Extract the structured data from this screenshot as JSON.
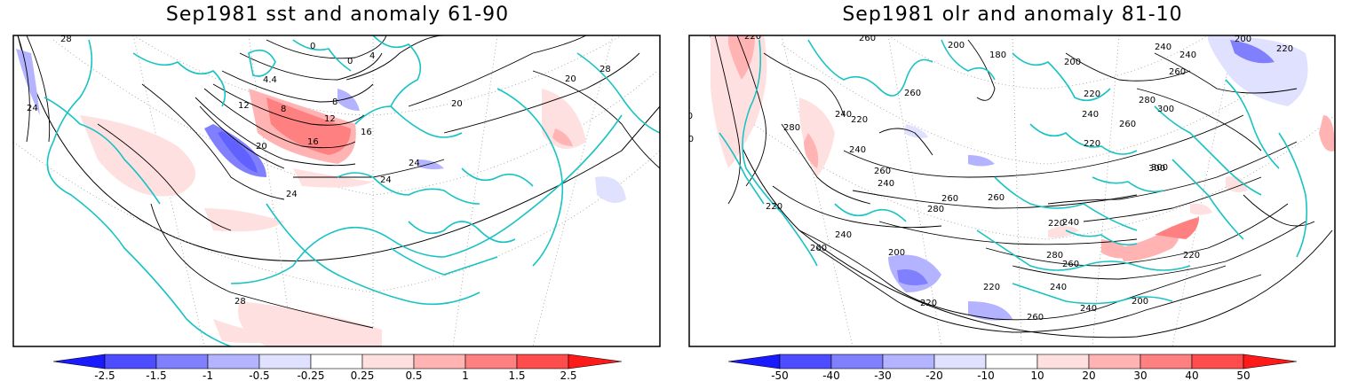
{
  "panels": [
    {
      "title": "Sep1981 sst and anomaly 61-90",
      "colorbar": {
        "ticks": [
          "-2.5",
          "-1.5",
          "-1",
          "-0.5",
          "-0.25",
          "0.25",
          "0.5",
          "1",
          "1.5",
          "2.5"
        ],
        "colors": [
          "#1a1aff",
          "#4d4dff",
          "#8080ff",
          "#b3b3ff",
          "#e0e0ff",
          "#ffffff",
          "#ffe0e0",
          "#ffb3b3",
          "#ff8080",
          "#ff4d4d",
          "#ff1a1a"
        ]
      },
      "contour_labels": [
        "28",
        "24",
        "20",
        "16",
        "12",
        "8",
        "4",
        "0",
        "24",
        "20",
        "24",
        "24",
        "28",
        "4.4",
        "12",
        "28",
        "0",
        "8",
        "16",
        "20"
      ]
    },
    {
      "title": "Sep1981 olr and anomaly 81-10",
      "colorbar": {
        "ticks": [
          "-50",
          "-40",
          "-30",
          "-20",
          "-10",
          "10",
          "20",
          "30",
          "40",
          "50"
        ],
        "colors": [
          "#1a1aff",
          "#4d4dff",
          "#8080ff",
          "#b3b3ff",
          "#e0e0ff",
          "#ffffff",
          "#ffe0e0",
          "#ffb3b3",
          "#ff8080",
          "#ff4d4d",
          "#ff1a1a"
        ]
      },
      "contour_labels": [
        "220",
        "260",
        "200",
        "180",
        "200",
        "240",
        "200",
        "220",
        "240",
        "260",
        "220",
        "240",
        "260",
        "280",
        "300",
        "240",
        "260",
        "220",
        "240",
        "260",
        "280",
        "300",
        "260",
        "240",
        "220",
        "260",
        "280",
        "300",
        "220",
        "240",
        "260",
        "220",
        "240",
        "200",
        "220",
        "260",
        "240",
        "220",
        "200",
        "240",
        "220",
        "260",
        "280",
        "240",
        "260"
      ]
    }
  ],
  "colors": {
    "coast": "#19c3c3",
    "contour": "#000000",
    "grid": "#9a9a9a",
    "frame": "#000000"
  }
}
